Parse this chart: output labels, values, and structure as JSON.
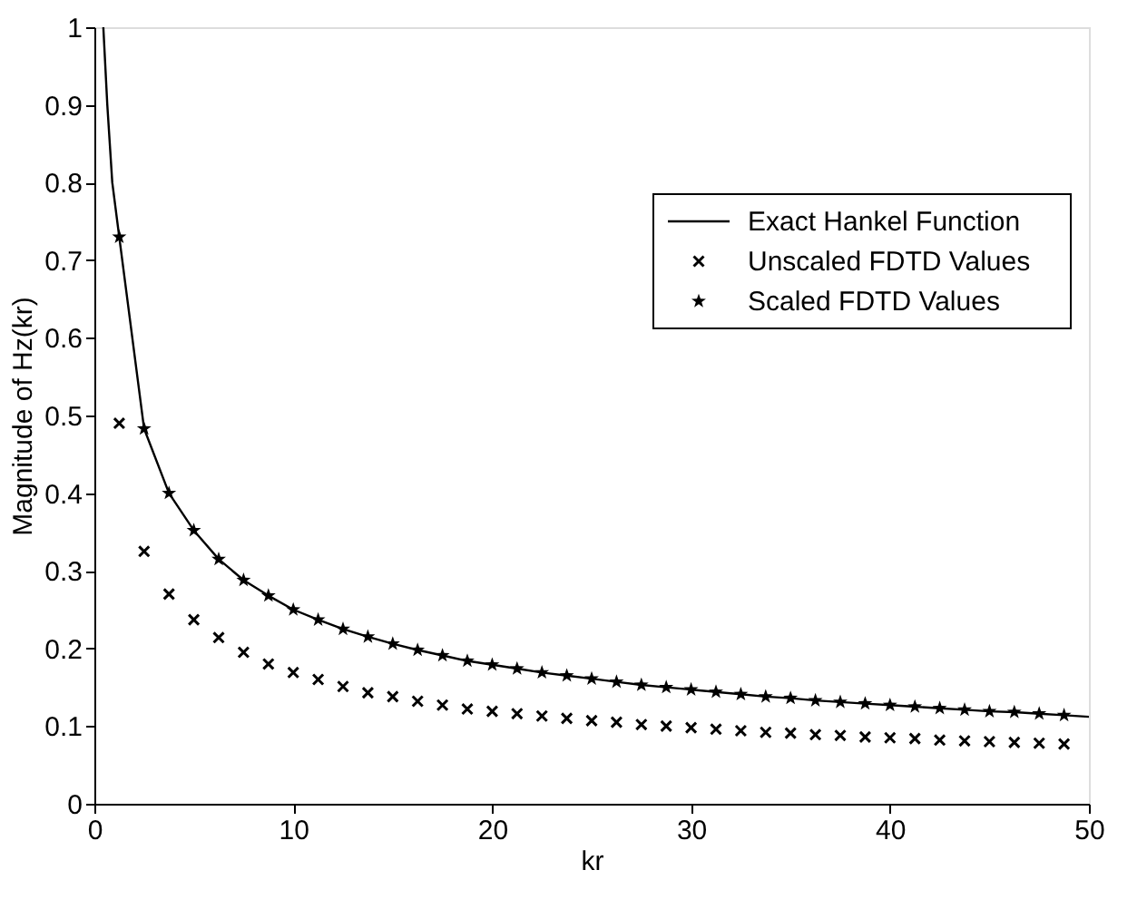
{
  "chart_data": {
    "type": "line",
    "xlabel": "kr",
    "ylabel": "Magnitude of Hz(kr)",
    "xlim": [
      0,
      50
    ],
    "ylim": [
      0,
      1
    ],
    "xticks": [
      0,
      10,
      20,
      30,
      40,
      50
    ],
    "yticks": [
      0,
      0.1,
      0.2,
      0.3,
      0.4,
      0.5,
      0.6,
      0.7,
      0.8,
      0.9,
      1
    ],
    "grid": false,
    "legend": "top right",
    "series": [
      {
        "name": "Exact Hankel Function",
        "type": "line",
        "color": "#000000",
        "marker": "none",
        "line_style": "solid",
        "x": [
          0.45,
          0.65,
          0.9,
          1.25,
          2.5,
          3.75,
          5,
          6.25,
          7.5,
          8.75,
          10,
          11.25,
          12.5,
          13.75,
          15,
          16.25,
          17.5,
          18.75,
          20,
          21.25,
          22.5,
          23.75,
          25,
          26.25,
          27.5,
          28.75,
          30,
          31.25,
          32.5,
          33.75,
          35,
          36.25,
          37.5,
          38.75,
          40,
          41.25,
          42.5,
          43.75,
          45,
          46.25,
          47.5,
          48.75,
          50
        ],
        "values": [
          1.0,
          0.9,
          0.8,
          0.73,
          0.483,
          0.4,
          0.352,
          0.315,
          0.288,
          0.268,
          0.25,
          0.237,
          0.225,
          0.215,
          0.206,
          0.198,
          0.191,
          0.184,
          0.179,
          0.174,
          0.169,
          0.165,
          0.161,
          0.157,
          0.153,
          0.15,
          0.147,
          0.144,
          0.141,
          0.138,
          0.136,
          0.133,
          0.131,
          0.129,
          0.127,
          0.125,
          0.123,
          0.121,
          0.119,
          0.118,
          0.116,
          0.114,
          0.112
        ]
      },
      {
        "name": "Unscaled FDTD Values",
        "type": "scatter",
        "color": "#000000",
        "marker": "cross",
        "x": [
          1.25,
          2.5,
          3.75,
          5,
          6.25,
          7.5,
          8.75,
          10,
          11.25,
          12.5,
          13.75,
          15,
          16.25,
          17.5,
          18.75,
          20,
          21.25,
          22.5,
          23.75,
          25,
          26.25,
          27.5,
          28.75,
          30,
          31.25,
          32.5,
          33.75,
          35,
          36.25,
          37.5,
          38.75,
          40,
          41.25,
          42.5,
          43.75,
          45,
          46.25,
          47.5,
          48.75
        ],
        "values": [
          0.49,
          0.325,
          0.27,
          0.237,
          0.214,
          0.195,
          0.18,
          0.169,
          0.16,
          0.151,
          0.143,
          0.138,
          0.132,
          0.127,
          0.122,
          0.119,
          0.116,
          0.113,
          0.11,
          0.107,
          0.105,
          0.102,
          0.1,
          0.098,
          0.096,
          0.094,
          0.092,
          0.091,
          0.089,
          0.088,
          0.086,
          0.085,
          0.084,
          0.082,
          0.081,
          0.08,
          0.079,
          0.078,
          0.077
        ]
      },
      {
        "name": "Scaled FDTD Values",
        "type": "scatter",
        "color": "#000000",
        "marker": "star",
        "x": [
          1.25,
          2.5,
          3.75,
          5,
          6.25,
          7.5,
          8.75,
          10,
          11.25,
          12.5,
          13.75,
          15,
          16.25,
          17.5,
          18.75,
          20,
          21.25,
          22.5,
          23.75,
          25,
          26.25,
          27.5,
          28.75,
          30,
          31.25,
          32.5,
          33.75,
          35,
          36.25,
          37.5,
          38.75,
          40,
          41.25,
          42.5,
          43.75,
          45,
          46.25,
          47.5,
          48.75
        ],
        "values": [
          0.73,
          0.483,
          0.4,
          0.352,
          0.315,
          0.288,
          0.268,
          0.25,
          0.237,
          0.225,
          0.215,
          0.206,
          0.198,
          0.191,
          0.184,
          0.179,
          0.174,
          0.169,
          0.165,
          0.161,
          0.157,
          0.153,
          0.15,
          0.147,
          0.144,
          0.141,
          0.138,
          0.136,
          0.133,
          0.131,
          0.129,
          0.127,
          0.125,
          0.123,
          0.121,
          0.119,
          0.118,
          0.116,
          0.114
        ]
      }
    ]
  }
}
